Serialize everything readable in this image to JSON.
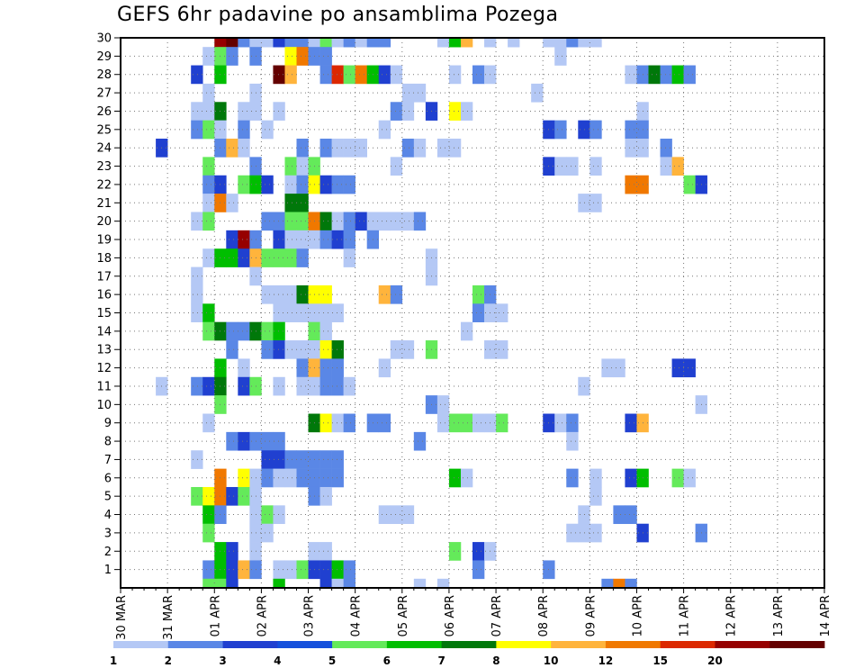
{
  "title": "GEFS 6hr padavine po ansamblima Pozega",
  "chart_data": {
    "type": "heatmap",
    "title": "GEFS 6hr padavine po ansamblima Pozega",
    "x_tick_labels": [
      "30 MAR",
      "31 MAR",
      "01 APR",
      "02 APR",
      "03 APR",
      "04 APR",
      "05 APR",
      "06 APR",
      "07 APR",
      "08 APR",
      "09 APR",
      "10 APR",
      "11 APR",
      "12 APR",
      "13 APR",
      "14 APR"
    ],
    "y_tick_labels": [
      "1",
      "2",
      "3",
      "4",
      "5",
      "6",
      "7",
      "8",
      "9",
      "10",
      "11",
      "12",
      "13",
      "14",
      "15",
      "16",
      "17",
      "18",
      "19",
      "20",
      "21",
      "22",
      "23",
      "24",
      "25",
      "26",
      "27",
      "28",
      "29",
      "30"
    ],
    "y_range": [
      0,
      30
    ],
    "time_step_hours": 6,
    "grid": true,
    "colorbar": {
      "position": "bottom",
      "labels": [
        "1",
        "2",
        "3",
        "4",
        "5",
        "6",
        "7",
        "8",
        "10",
        "12",
        "15",
        "20"
      ],
      "colors": [
        "#b4c8f5",
        "#5a87e6",
        "#2040d0",
        "#1450dc",
        "#64ea5a",
        "#00be00",
        "#00780a",
        "#ffff00",
        "#ffb43c",
        "#f07800",
        "#dc2800",
        "#960000",
        "#640000"
      ]
    },
    "cells_note": "each cell: [member_row, x_index_6h_from_30MAR_00Z, color_class 1..13]",
    "cells": [
      [
        30,
        8,
        12
      ],
      [
        30,
        9,
        13
      ],
      [
        30,
        10,
        2
      ],
      [
        30,
        11,
        1
      ],
      [
        30,
        12,
        1
      ],
      [
        30,
        13,
        3
      ],
      [
        30,
        14,
        2
      ],
      [
        30,
        15,
        2
      ],
      [
        30,
        16,
        1
      ],
      [
        30,
        17,
        5
      ],
      [
        30,
        18,
        1
      ],
      [
        30,
        19,
        2
      ],
      [
        30,
        20,
        1
      ],
      [
        30,
        21,
        2
      ],
      [
        30,
        22,
        2
      ],
      [
        30,
        27,
        1
      ],
      [
        30,
        28,
        6
      ],
      [
        30,
        29,
        9
      ],
      [
        30,
        31,
        1
      ],
      [
        30,
        33,
        1
      ],
      [
        30,
        36,
        1
      ],
      [
        30,
        37,
        1
      ],
      [
        30,
        38,
        2
      ],
      [
        30,
        39,
        1
      ],
      [
        30,
        40,
        1
      ],
      [
        29,
        7,
        1
      ],
      [
        29,
        8,
        5
      ],
      [
        29,
        9,
        2
      ],
      [
        29,
        11,
        2
      ],
      [
        29,
        14,
        8
      ],
      [
        29,
        15,
        10
      ],
      [
        29,
        16,
        2
      ],
      [
        29,
        17,
        2
      ],
      [
        29,
        37,
        1
      ],
      [
        28,
        6,
        3
      ],
      [
        28,
        8,
        6
      ],
      [
        28,
        13,
        13
      ],
      [
        28,
        14,
        9
      ],
      [
        28,
        17,
        2
      ],
      [
        28,
        18,
        11
      ],
      [
        28,
        19,
        5
      ],
      [
        28,
        20,
        10
      ],
      [
        28,
        21,
        6
      ],
      [
        28,
        22,
        3
      ],
      [
        28,
        23,
        1
      ],
      [
        28,
        28,
        1
      ],
      [
        28,
        30,
        2
      ],
      [
        28,
        31,
        1
      ],
      [
        28,
        43,
        1
      ],
      [
        28,
        44,
        2
      ],
      [
        28,
        45,
        7
      ],
      [
        28,
        46,
        2
      ],
      [
        28,
        47,
        6
      ],
      [
        28,
        48,
        2
      ],
      [
        27,
        7,
        1
      ],
      [
        27,
        11,
        1
      ],
      [
        27,
        24,
        1
      ],
      [
        27,
        25,
        1
      ],
      [
        27,
        35,
        1
      ],
      [
        26,
        6,
        1
      ],
      [
        26,
        7,
        1
      ],
      [
        26,
        8,
        7
      ],
      [
        26,
        10,
        1
      ],
      [
        26,
        11,
        1
      ],
      [
        26,
        13,
        1
      ],
      [
        26,
        23,
        2
      ],
      [
        26,
        24,
        1
      ],
      [
        26,
        26,
        3
      ],
      [
        26,
        28,
        8
      ],
      [
        26,
        29,
        1
      ],
      [
        26,
        44,
        1
      ],
      [
        25,
        6,
        2
      ],
      [
        25,
        7,
        5
      ],
      [
        25,
        8,
        1
      ],
      [
        25,
        10,
        2
      ],
      [
        25,
        12,
        1
      ],
      [
        25,
        22,
        1
      ],
      [
        25,
        36,
        3
      ],
      [
        25,
        37,
        2
      ],
      [
        25,
        39,
        3
      ],
      [
        25,
        40,
        2
      ],
      [
        25,
        43,
        2
      ],
      [
        25,
        44,
        2
      ],
      [
        24,
        3,
        3
      ],
      [
        24,
        8,
        2
      ],
      [
        24,
        9,
        9
      ],
      [
        24,
        10,
        1
      ],
      [
        24,
        15,
        2
      ],
      [
        24,
        17,
        2
      ],
      [
        24,
        18,
        1
      ],
      [
        24,
        19,
        1
      ],
      [
        24,
        20,
        1
      ],
      [
        24,
        24,
        2
      ],
      [
        24,
        25,
        1
      ],
      [
        24,
        27,
        1
      ],
      [
        24,
        28,
        1
      ],
      [
        24,
        43,
        1
      ],
      [
        24,
        44,
        1
      ],
      [
        24,
        46,
        2
      ],
      [
        23,
        7,
        5
      ],
      [
        23,
        11,
        2
      ],
      [
        23,
        14,
        5
      ],
      [
        23,
        15,
        1
      ],
      [
        23,
        16,
        5
      ],
      [
        23,
        23,
        1
      ],
      [
        23,
        36,
        3
      ],
      [
        23,
        37,
        1
      ],
      [
        23,
        38,
        1
      ],
      [
        23,
        40,
        1
      ],
      [
        23,
        46,
        1
      ],
      [
        23,
        47,
        9
      ],
      [
        22,
        7,
        2
      ],
      [
        22,
        8,
        3
      ],
      [
        22,
        10,
        5
      ],
      [
        22,
        11,
        6
      ],
      [
        22,
        12,
        3
      ],
      [
        22,
        14,
        1
      ],
      [
        22,
        15,
        2
      ],
      [
        22,
        16,
        8
      ],
      [
        22,
        17,
        3
      ],
      [
        22,
        18,
        2
      ],
      [
        22,
        19,
        2
      ],
      [
        22,
        43,
        10
      ],
      [
        22,
        44,
        10
      ],
      [
        22,
        48,
        5
      ],
      [
        22,
        49,
        3
      ],
      [
        21,
        7,
        1
      ],
      [
        21,
        8,
        10
      ],
      [
        21,
        9,
        1
      ],
      [
        21,
        14,
        7
      ],
      [
        21,
        15,
        7
      ],
      [
        21,
        39,
        1
      ],
      [
        21,
        40,
        1
      ],
      [
        20,
        6,
        1
      ],
      [
        20,
        7,
        5
      ],
      [
        20,
        12,
        2
      ],
      [
        20,
        13,
        2
      ],
      [
        20,
        14,
        5
      ],
      [
        20,
        15,
        5
      ],
      [
        20,
        16,
        10
      ],
      [
        20,
        17,
        7
      ],
      [
        20,
        18,
        1
      ],
      [
        20,
        19,
        2
      ],
      [
        20,
        20,
        3
      ],
      [
        20,
        21,
        1
      ],
      [
        20,
        22,
        1
      ],
      [
        20,
        23,
        1
      ],
      [
        20,
        24,
        1
      ],
      [
        20,
        25,
        2
      ],
      [
        19,
        9,
        3
      ],
      [
        19,
        10,
        12
      ],
      [
        19,
        11,
        2
      ],
      [
        19,
        13,
        3
      ],
      [
        19,
        14,
        1
      ],
      [
        19,
        15,
        1
      ],
      [
        19,
        16,
        1
      ],
      [
        19,
        17,
        2
      ],
      [
        19,
        18,
        3
      ],
      [
        19,
        19,
        2
      ],
      [
        19,
        21,
        2
      ],
      [
        18,
        7,
        1
      ],
      [
        18,
        8,
        6
      ],
      [
        18,
        9,
        6
      ],
      [
        18,
        10,
        3
      ],
      [
        18,
        11,
        9
      ],
      [
        18,
        12,
        5
      ],
      [
        18,
        13,
        5
      ],
      [
        18,
        14,
        5
      ],
      [
        18,
        15,
        2
      ],
      [
        18,
        19,
        1
      ],
      [
        18,
        26,
        1
      ],
      [
        17,
        6,
        1
      ],
      [
        17,
        11,
        1
      ],
      [
        17,
        26,
        1
      ],
      [
        16,
        6,
        1
      ],
      [
        16,
        12,
        1
      ],
      [
        16,
        13,
        1
      ],
      [
        16,
        14,
        1
      ],
      [
        16,
        15,
        7
      ],
      [
        16,
        16,
        8
      ],
      [
        16,
        17,
        8
      ],
      [
        16,
        22,
        9
      ],
      [
        16,
        23,
        2
      ],
      [
        16,
        30,
        5
      ],
      [
        16,
        31,
        2
      ],
      [
        15,
        6,
        1
      ],
      [
        15,
        7,
        6
      ],
      [
        15,
        13,
        1
      ],
      [
        15,
        14,
        1
      ],
      [
        15,
        15,
        1
      ],
      [
        15,
        16,
        1
      ],
      [
        15,
        17,
        1
      ],
      [
        15,
        18,
        1
      ],
      [
        15,
        30,
        2
      ],
      [
        15,
        31,
        1
      ],
      [
        15,
        32,
        1
      ],
      [
        14,
        7,
        5
      ],
      [
        14,
        8,
        7
      ],
      [
        14,
        9,
        2
      ],
      [
        14,
        10,
        2
      ],
      [
        14,
        11,
        7
      ],
      [
        14,
        12,
        5
      ],
      [
        14,
        13,
        6
      ],
      [
        14,
        16,
        5
      ],
      [
        14,
        17,
        1
      ],
      [
        14,
        29,
        1
      ],
      [
        13,
        9,
        2
      ],
      [
        13,
        12,
        2
      ],
      [
        13,
        13,
        3
      ],
      [
        13,
        14,
        1
      ],
      [
        13,
        15,
        1
      ],
      [
        13,
        16,
        1
      ],
      [
        13,
        17,
        8
      ],
      [
        13,
        18,
        7
      ],
      [
        13,
        23,
        1
      ],
      [
        13,
        24,
        1
      ],
      [
        13,
        26,
        5
      ],
      [
        13,
        31,
        1
      ],
      [
        13,
        32,
        1
      ],
      [
        12,
        8,
        6
      ],
      [
        12,
        10,
        1
      ],
      [
        12,
        15,
        2
      ],
      [
        12,
        16,
        9
      ],
      [
        12,
        17,
        2
      ],
      [
        12,
        18,
        2
      ],
      [
        12,
        22,
        1
      ],
      [
        12,
        41,
        1
      ],
      [
        12,
        42,
        1
      ],
      [
        12,
        47,
        3
      ],
      [
        12,
        48,
        3
      ],
      [
        11,
        3,
        1
      ],
      [
        11,
        6,
        2
      ],
      [
        11,
        7,
        3
      ],
      [
        11,
        8,
        7
      ],
      [
        11,
        10,
        3
      ],
      [
        11,
        11,
        5
      ],
      [
        11,
        13,
        1
      ],
      [
        11,
        15,
        1
      ],
      [
        11,
        16,
        1
      ],
      [
        11,
        17,
        2
      ],
      [
        11,
        18,
        2
      ],
      [
        11,
        19,
        1
      ],
      [
        11,
        39,
        1
      ],
      [
        10,
        8,
        5
      ],
      [
        10,
        26,
        2
      ],
      [
        10,
        27,
        1
      ],
      [
        10,
        49,
        1
      ],
      [
        9,
        7,
        1
      ],
      [
        9,
        16,
        7
      ],
      [
        9,
        17,
        8
      ],
      [
        9,
        18,
        1
      ],
      [
        9,
        19,
        2
      ],
      [
        9,
        21,
        2
      ],
      [
        9,
        22,
        2
      ],
      [
        9,
        27,
        1
      ],
      [
        9,
        28,
        5
      ],
      [
        9,
        29,
        5
      ],
      [
        9,
        30,
        1
      ],
      [
        9,
        31,
        1
      ],
      [
        9,
        32,
        5
      ],
      [
        9,
        36,
        3
      ],
      [
        9,
        37,
        1
      ],
      [
        9,
        38,
        2
      ],
      [
        9,
        43,
        3
      ],
      [
        9,
        44,
        9
      ],
      [
        8,
        9,
        2
      ],
      [
        8,
        10,
        3
      ],
      [
        8,
        11,
        2
      ],
      [
        8,
        12,
        2
      ],
      [
        8,
        13,
        2
      ],
      [
        8,
        25,
        2
      ],
      [
        8,
        38,
        1
      ],
      [
        7,
        6,
        1
      ],
      [
        7,
        12,
        3
      ],
      [
        7,
        13,
        3
      ],
      [
        7,
        14,
        2
      ],
      [
        7,
        15,
        2
      ],
      [
        7,
        16,
        2
      ],
      [
        7,
        17,
        2
      ],
      [
        7,
        18,
        2
      ],
      [
        6,
        8,
        10
      ],
      [
        6,
        10,
        8
      ],
      [
        6,
        11,
        1
      ],
      [
        6,
        12,
        2
      ],
      [
        6,
        13,
        1
      ],
      [
        6,
        14,
        1
      ],
      [
        6,
        15,
        2
      ],
      [
        6,
        16,
        2
      ],
      [
        6,
        17,
        2
      ],
      [
        6,
        18,
        2
      ],
      [
        6,
        28,
        6
      ],
      [
        6,
        29,
        1
      ],
      [
        6,
        38,
        2
      ],
      [
        6,
        40,
        1
      ],
      [
        6,
        43,
        3
      ],
      [
        6,
        44,
        6
      ],
      [
        6,
        47,
        5
      ],
      [
        6,
        48,
        1
      ],
      [
        5,
        6,
        5
      ],
      [
        5,
        7,
        8
      ],
      [
        5,
        8,
        10
      ],
      [
        5,
        9,
        3
      ],
      [
        5,
        10,
        5
      ],
      [
        5,
        11,
        1
      ],
      [
        5,
        16,
        2
      ],
      [
        5,
        17,
        1
      ],
      [
        5,
        40,
        1
      ],
      [
        4,
        7,
        6
      ],
      [
        4,
        8,
        2
      ],
      [
        4,
        11,
        1
      ],
      [
        4,
        12,
        5
      ],
      [
        4,
        13,
        1
      ],
      [
        4,
        22,
        1
      ],
      [
        4,
        23,
        1
      ],
      [
        4,
        24,
        1
      ],
      [
        4,
        39,
        1
      ],
      [
        4,
        42,
        2
      ],
      [
        4,
        43,
        2
      ],
      [
        3,
        7,
        5
      ],
      [
        3,
        11,
        1
      ],
      [
        3,
        12,
        1
      ],
      [
        3,
        38,
        1
      ],
      [
        3,
        39,
        1
      ],
      [
        3,
        40,
        1
      ],
      [
        3,
        44,
        3
      ],
      [
        3,
        49,
        2
      ],
      [
        2,
        8,
        6
      ],
      [
        2,
        9,
        3
      ],
      [
        2,
        11,
        1
      ],
      [
        2,
        16,
        1
      ],
      [
        2,
        17,
        1
      ],
      [
        2,
        28,
        5
      ],
      [
        2,
        30,
        3
      ],
      [
        2,
        31,
        1
      ],
      [
        1,
        7,
        2
      ],
      [
        1,
        8,
        6
      ],
      [
        1,
        9,
        3
      ],
      [
        1,
        10,
        9
      ],
      [
        1,
        11,
        2
      ],
      [
        1,
        13,
        1
      ],
      [
        1,
        14,
        1
      ],
      [
        1,
        15,
        5
      ],
      [
        1,
        16,
        3
      ],
      [
        1,
        17,
        3
      ],
      [
        1,
        18,
        6
      ],
      [
        1,
        19,
        2
      ],
      [
        1,
        30,
        2
      ],
      [
        1,
        36,
        2
      ],
      [
        0,
        7,
        5
      ],
      [
        0,
        8,
        5
      ],
      [
        0,
        9,
        3
      ],
      [
        0,
        13,
        6
      ],
      [
        0,
        17,
        3
      ],
      [
        0,
        18,
        1
      ],
      [
        0,
        19,
        2
      ],
      [
        0,
        25,
        1
      ],
      [
        0,
        27,
        1
      ],
      [
        0,
        41,
        2
      ],
      [
        0,
        42,
        10
      ],
      [
        0,
        43,
        2
      ]
    ]
  }
}
